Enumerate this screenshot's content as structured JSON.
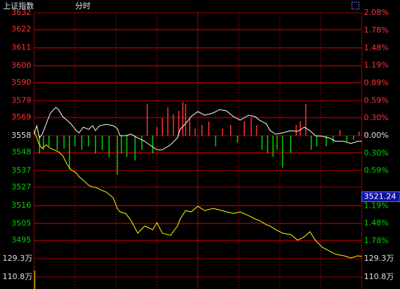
{
  "chart_data": {
    "type": "line",
    "title": "上证指数",
    "subtitle": "分时",
    "xlim": [
      0,
      240
    ],
    "xticks": [
      30,
      60,
      90,
      120,
      150,
      180,
      210
    ],
    "ylim": [
      3484,
      3632
    ],
    "yticks": [
      3632,
      3622,
      3611,
      3600,
      3590,
      3579,
      3569,
      3558,
      3548,
      3537,
      3527,
      3516,
      3505,
      3495
    ],
    "y2lim": [
      -2.08,
      2.08
    ],
    "y2ticks": [
      {
        "value": 2.08,
        "label": "2.08%"
      },
      {
        "value": 1.78,
        "label": "1.78%"
      },
      {
        "value": 1.48,
        "label": "1.48%"
      },
      {
        "value": 1.19,
        "label": "1.19%"
      },
      {
        "value": 0.89,
        "label": "0.89%"
      },
      {
        "value": 0.59,
        "label": "0.59%"
      },
      {
        "value": 0.3,
        "label": "0.30%"
      },
      {
        "value": 0,
        "label": "0.00%"
      },
      {
        "value": -0.3,
        "label": "0.30%"
      },
      {
        "value": -0.59,
        "label": "0.59%"
      },
      {
        "value": -1.19,
        "label": "1.19%"
      },
      {
        "value": -1.48,
        "label": "1.48%"
      },
      {
        "value": -1.78,
        "label": "1.78%"
      }
    ],
    "last_price": 3521.24,
    "up_color": "#ff3232",
    "down_color": "#00d200",
    "grid_color": "#a00000",
    "x": [
      0,
      2,
      4,
      6,
      9,
      12,
      16,
      18,
      21,
      24,
      27,
      31,
      33,
      36,
      40,
      43,
      45,
      48,
      53,
      58,
      61,
      63,
      67,
      71,
      76,
      81,
      87,
      90,
      94,
      100,
      105,
      107,
      111,
      115,
      120,
      125,
      131,
      136,
      141,
      146,
      151,
      157,
      162,
      165,
      170,
      173,
      177,
      182,
      188,
      193,
      198,
      202,
      206,
      211,
      216,
      221,
      227,
      232,
      237,
      240
    ],
    "series": [
      {
        "color": "#ffffff",
        "values": [
          3558.9,
          3564.0,
          3556.7,
          3558.9,
          3565.2,
          3571.6,
          3575.0,
          3573.7,
          3569.5,
          3567.4,
          3565.2,
          3561.0,
          3559.7,
          3563.1,
          3561.8,
          3564.0,
          3561.0,
          3564.0,
          3564.8,
          3564.0,
          3562.3,
          3558.0,
          3558.0,
          3558.9,
          3556.7,
          3554.6,
          3551.2,
          3549.5,
          3549.5,
          3552.5,
          3556.7,
          3561.8,
          3565.2,
          3569.5,
          3572.5,
          3570.3,
          3571.6,
          3573.7,
          3572.9,
          3569.5,
          3567.4,
          3570.3,
          3569.5,
          3567.4,
          3565.2,
          3561.0,
          3558.9,
          3559.7,
          3561.0,
          3560.6,
          3563.1,
          3561.0,
          3558.0,
          3557.6,
          3556.7,
          3554.6,
          3554.6,
          3553.3,
          3554.6,
          3554.6
        ]
      },
      {
        "color": "#ffff00",
        "values": [
          3561.0,
          3556.7,
          3552.5,
          3550.3,
          3552.5,
          3550.3,
          3549.1,
          3548.2,
          3546.1,
          3541.0,
          3537.6,
          3535.5,
          3533.3,
          3531.2,
          3528.2,
          3527.0,
          3527.0,
          3525.7,
          3524.0,
          3520.6,
          3514.2,
          3512.1,
          3511.2,
          3507.0,
          3499.3,
          3503.6,
          3501.4,
          3505.7,
          3499.3,
          3498.0,
          3503.6,
          3507.8,
          3512.9,
          3512.1,
          3515.5,
          3512.9,
          3514.2,
          3513.3,
          3512.1,
          3511.2,
          3512.1,
          3509.9,
          3507.8,
          3507.0,
          3504.4,
          3503.6,
          3501.4,
          3499.3,
          3498.5,
          3495.1,
          3497.2,
          3500.2,
          3495.1,
          3490.9,
          3488.7,
          3486.6,
          3485.7,
          3484.4,
          3485.7,
          3485.3
        ]
      }
    ],
    "strength": {
      "axis": "y2",
      "x": [
        4,
        7,
        11,
        17,
        22,
        26,
        30,
        35,
        40,
        45,
        50,
        55,
        61,
        64,
        68,
        74,
        79,
        83,
        87,
        90,
        94,
        98,
        102,
        106,
        109,
        111,
        114,
        118,
        123,
        128,
        133,
        138,
        144,
        149,
        154,
        159,
        163,
        167,
        171,
        175,
        178,
        182,
        188,
        192,
        195,
        199,
        203,
        207,
        214,
        219,
        224,
        229,
        234,
        238
      ],
      "values": [
        -0.3,
        -0.24,
        -0.18,
        -0.24,
        -0.22,
        -0.57,
        -0.18,
        -0.24,
        -0.18,
        -0.3,
        -0.24,
        -0.36,
        -0.66,
        -0.3,
        -0.36,
        -0.42,
        -0.24,
        0.54,
        -0.3,
        0.14,
        0.3,
        0.48,
        0.36,
        0.42,
        0.57,
        0.54,
        0.3,
        0.12,
        0.18,
        0.24,
        -0.18,
        0.12,
        0.18,
        -0.12,
        0.24,
        0.3,
        0.18,
        -0.24,
        -0.3,
        -0.36,
        -0.24,
        -0.54,
        -0.3,
        0.18,
        0.24,
        0.54,
        -0.24,
        -0.18,
        -0.18,
        -0.12,
        0.1,
        -0.1,
        -0.07,
        0.07
      ]
    },
    "volume": {
      "ylim": [
        987000,
        1293000
      ],
      "yticks": [
        {
          "value": 1293000,
          "label": "129.3万"
        },
        {
          "value": 1108000,
          "label": "110.8万"
        }
      ],
      "x": [
        0
      ],
      "values": [
        1172000
      ],
      "color": "#ffff00"
    }
  }
}
